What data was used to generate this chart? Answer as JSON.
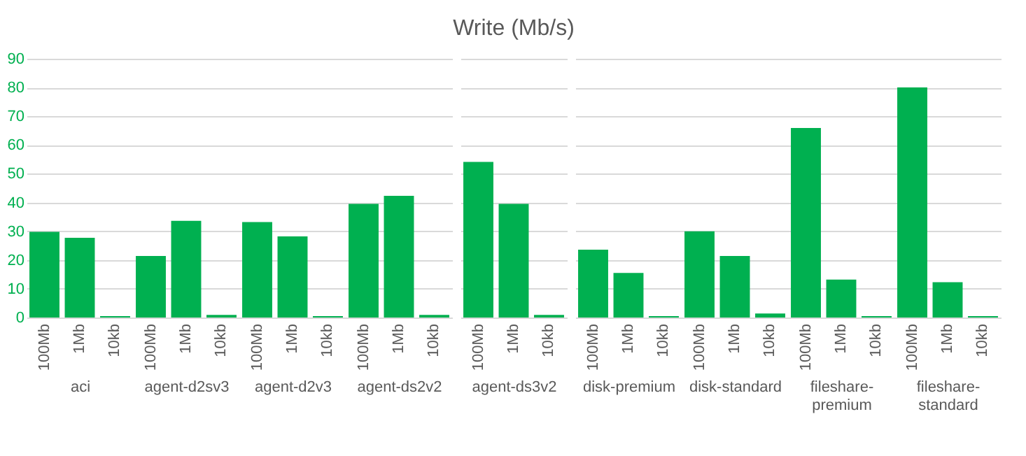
{
  "chart_data": [
    {
      "type": "bar",
      "xlabel": "aci",
      "categories": [
        "100Mb",
        "1Mb",
        "10kb"
      ],
      "values": [
        29.8,
        27.7,
        0.5
      ],
      "color": "#00b050",
      "ylim": [
        0,
        90
      ],
      "yticks": [
        0,
        10,
        20,
        30,
        40,
        50,
        60,
        70,
        80,
        90
      ],
      "grid": "y"
    },
    {
      "type": "bar",
      "xlabel": "agent-d2sv3",
      "categories": [
        "100Mb",
        "1Mb",
        "10kb"
      ],
      "values": [
        21.4,
        33.6,
        0.9
      ],
      "color": "#00b050",
      "ylim": [
        0,
        90
      ],
      "yticks": [
        0,
        10,
        20,
        30,
        40,
        50,
        60,
        70,
        80,
        90
      ],
      "grid": "y",
      "tick_labels": "x"
    },
    {
      "type": "bar",
      "xlabel": "agent-d2v3",
      "categories": [
        "100Mb",
        "1Mb",
        "10kb"
      ],
      "values": [
        33.2,
        28.2,
        0.5
      ],
      "color": "#00b050",
      "ylim": [
        0,
        90
      ],
      "yticks": [
        0,
        10,
        20,
        30,
        40,
        50,
        60,
        70,
        80,
        90
      ],
      "grid": "y",
      "tick_labels": "x"
    },
    {
      "type": "bar",
      "xlabel": "agent-ds2v2",
      "categories": [
        "100Mb",
        "1Mb",
        "10kb"
      ],
      "values": [
        39.5,
        42.3,
        0.9
      ],
      "color": "#00b050",
      "ylim": [
        0,
        90
      ],
      "yticks": [
        0,
        10,
        20,
        30,
        40,
        50,
        60,
        70,
        80,
        90
      ],
      "grid": "y",
      "tick_labels": "x"
    },
    {
      "type": "bar",
      "title": "Write (Mb/s)",
      "xlabel": "agent-ds3v2",
      "categories": [
        "100Mb",
        "1Mb",
        "10kb"
      ],
      "values": [
        54.1,
        39.5,
        0.9
      ],
      "color": "#00b050",
      "ylim": [
        0,
        90
      ],
      "yticks": [
        0,
        10,
        20,
        30,
        40,
        50,
        60,
        70,
        80,
        90
      ],
      "grid": "y",
      "tick_labels": "x"
    },
    {
      "type": "bar",
      "xlabel": "disk-premium",
      "categories": [
        "100Mb",
        "1Mb",
        "10kb"
      ],
      "values": [
        23.6,
        15.5,
        0.5
      ],
      "color": "#00b050",
      "ylim": [
        0,
        90
      ],
      "yticks": [
        0,
        10,
        20,
        30,
        40,
        50,
        60,
        70,
        80,
        90
      ],
      "grid": "y",
      "tick_labels": "x"
    },
    {
      "type": "bar",
      "xlabel": "disk-standard",
      "categories": [
        "100Mb",
        "1Mb",
        "10kb"
      ],
      "values": [
        30.0,
        21.4,
        1.4
      ],
      "color": "#00b050",
      "ylim": [
        0,
        90
      ],
      "yticks": [
        0,
        10,
        20,
        30,
        40,
        50,
        60,
        70,
        80,
        90
      ],
      "grid": "y",
      "tick_labels": "x"
    },
    {
      "type": "bar",
      "xlabel": "fileshare-premium",
      "categories": [
        "100Mb",
        "1Mb",
        "10kb"
      ],
      "values": [
        65.9,
        13.2,
        0.5
      ],
      "color": "#00b050",
      "ylim": [
        0,
        90
      ],
      "yticks": [
        0,
        10,
        20,
        30,
        40,
        50,
        60,
        70,
        80,
        90
      ],
      "grid": "y",
      "tick_labels": "x"
    },
    {
      "type": "bar",
      "xlabel": "fileshare-standard",
      "categories": [
        "100Mb",
        "1Mb",
        "10kb"
      ],
      "values": [
        80.0,
        12.3,
        0.5
      ],
      "color": "#00b050",
      "ylim": [
        0,
        90
      ],
      "yticks": [
        0,
        10,
        20,
        30,
        40,
        50,
        60,
        70,
        80,
        90
      ],
      "grid": "y",
      "tick_labels": "x"
    }
  ]
}
